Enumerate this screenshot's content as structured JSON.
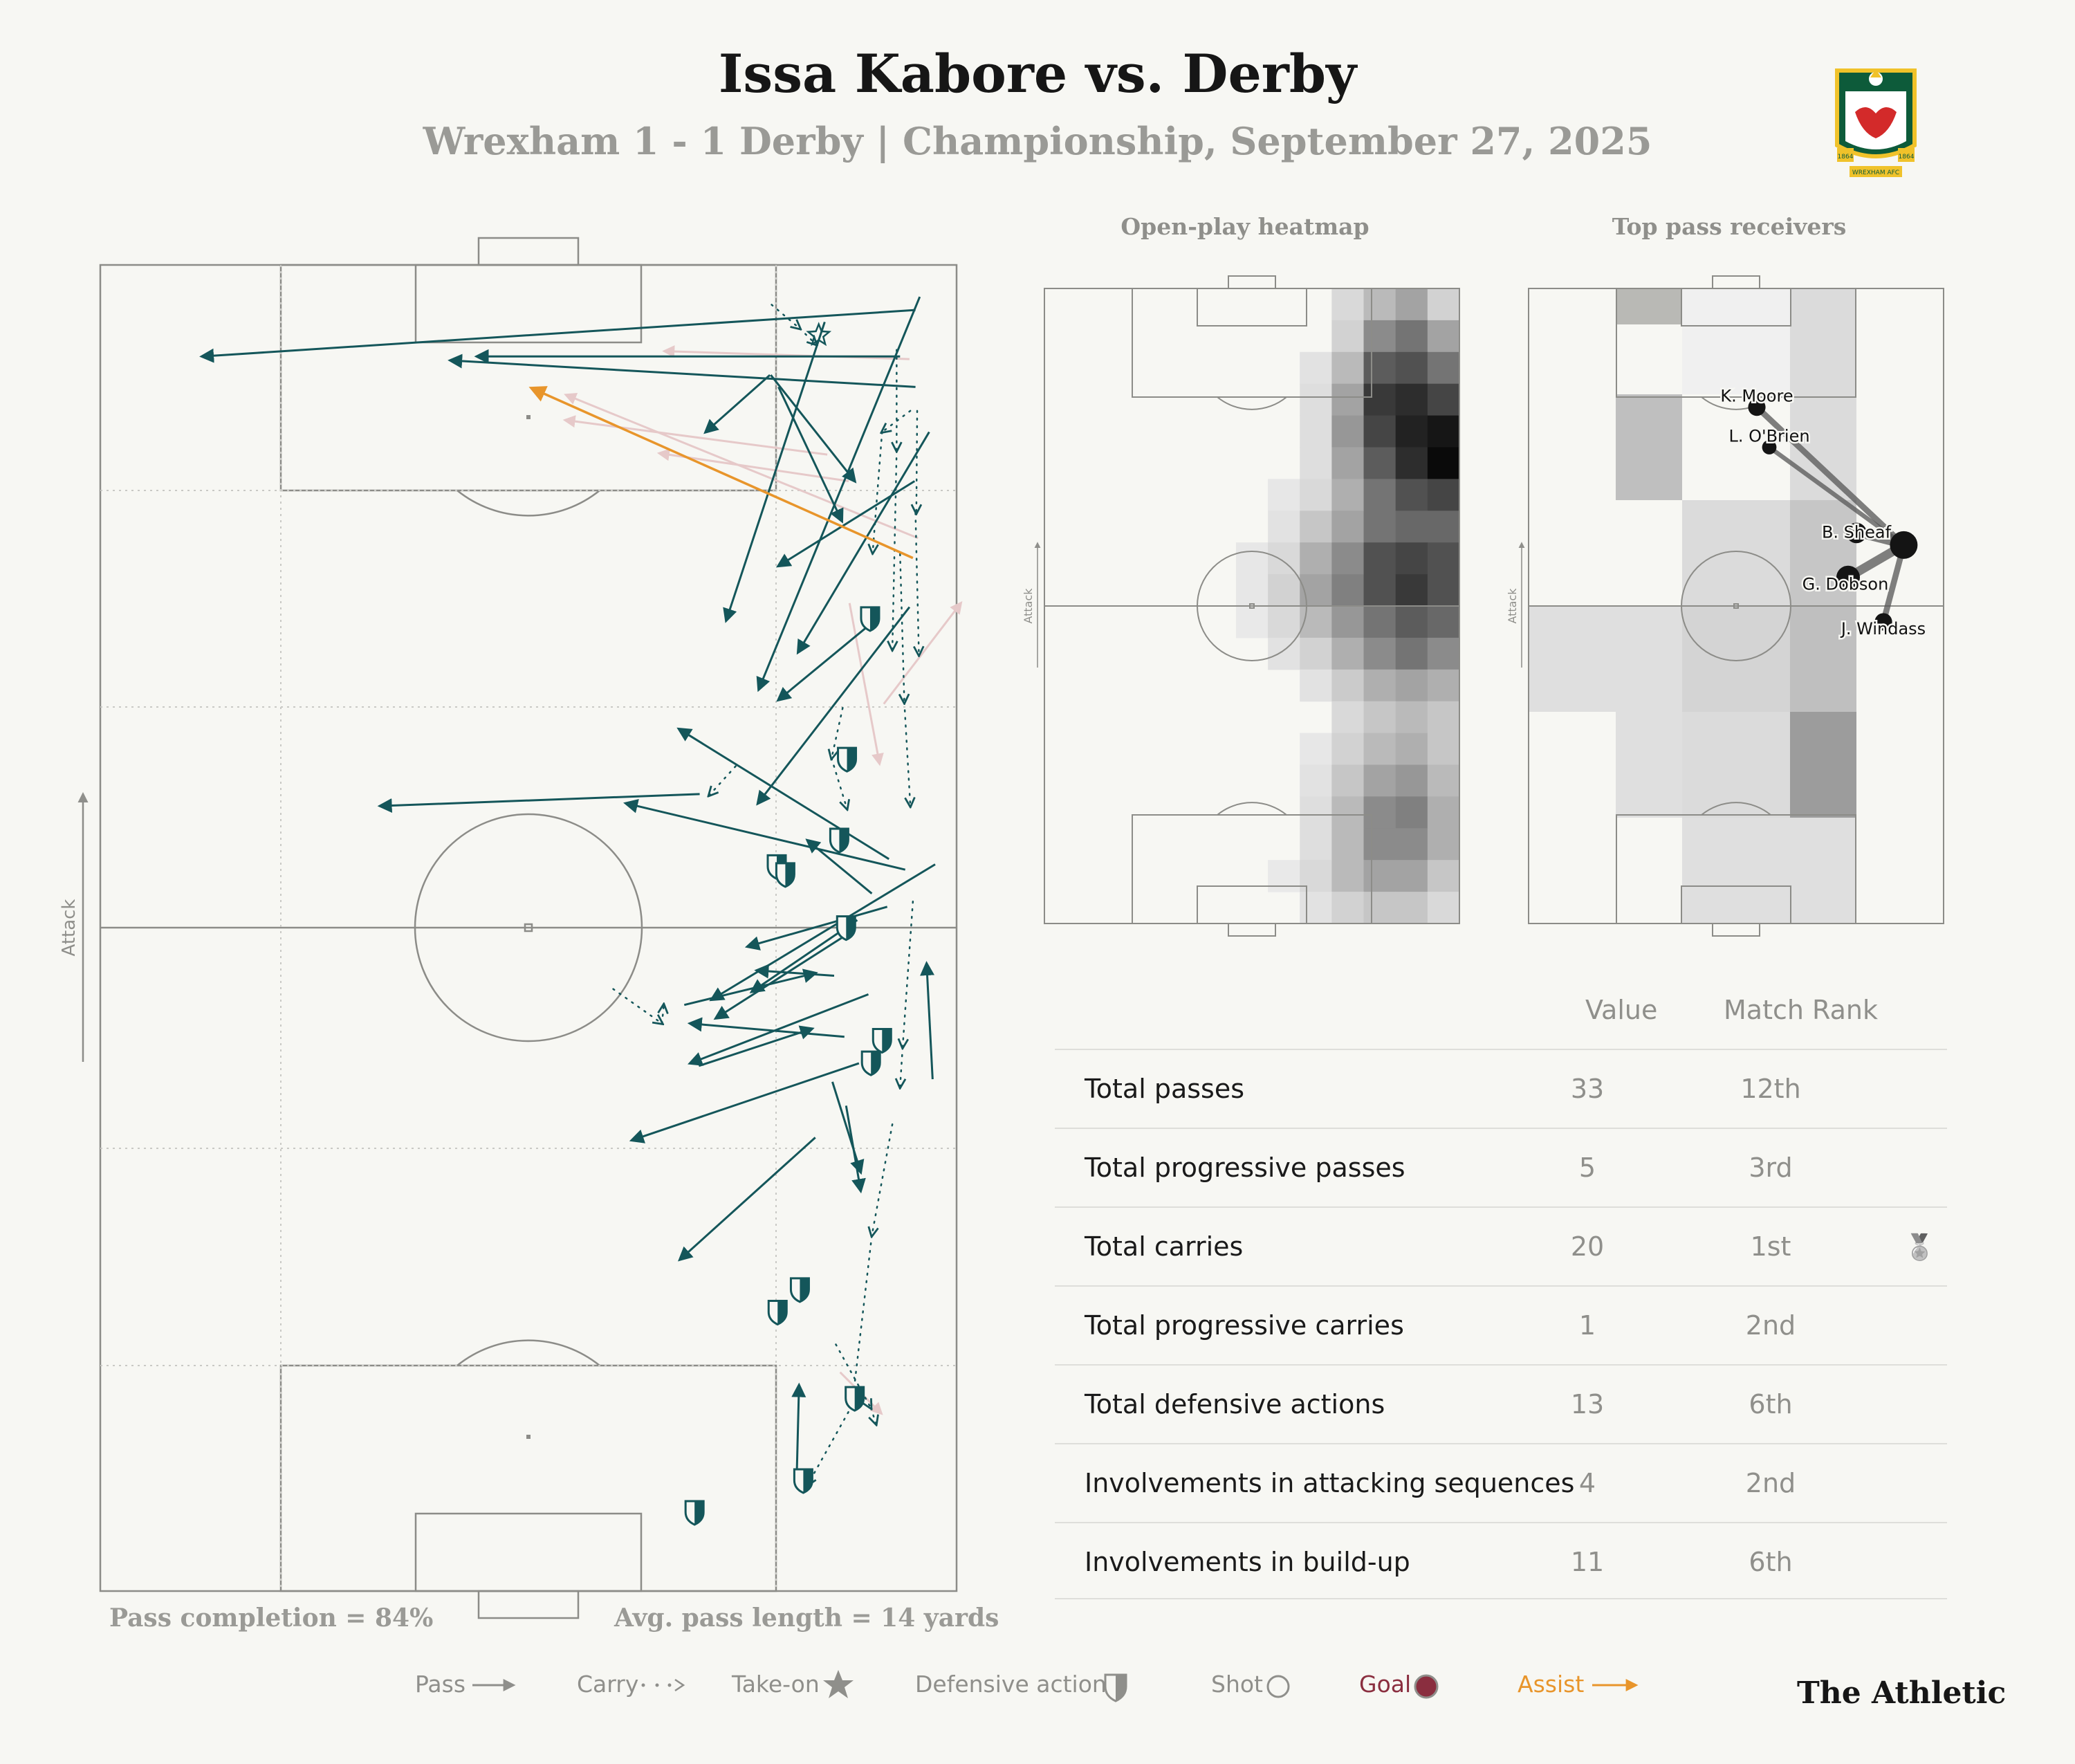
{
  "header": {
    "title": "Issa Kabore vs. Derby",
    "subtitle": "Wrexham 1 - 1 Derby | Championship, September 27, 2025",
    "crest_text_left": "1864",
    "crest_text_right": "1864",
    "crest_banner": "WREXHAM AFC"
  },
  "panels": {
    "heatmap_title": "Open-play heatmap",
    "receivers_title": "Top pass receivers",
    "attack_label": "Attack"
  },
  "pitch_footer": {
    "pass_completion": "Pass completion = 84%",
    "avg_pass_length": "Avg. pass length = 14 yards"
  },
  "stats": {
    "col_value": "Value",
    "col_rank": "Match Rank",
    "rows": [
      {
        "label": "Total passes",
        "value": "33",
        "rank": "12th"
      },
      {
        "label": "Total progressive passes",
        "value": "5",
        "rank": "3rd"
      },
      {
        "label": "Total carries",
        "value": "20",
        "rank": "1st",
        "medal": "medal-icon"
      },
      {
        "label": "Total progressive carries",
        "value": "1",
        "rank": "2nd"
      },
      {
        "label": "Total defensive actions",
        "value": "13",
        "rank": "6th"
      },
      {
        "label": "Involvements in attacking sequences",
        "value": "4",
        "rank": "2nd"
      },
      {
        "label": "Involvements in build-up",
        "value": "11",
        "rank": "6th"
      }
    ]
  },
  "legend": {
    "pass": "Pass",
    "carry": "Carry",
    "takeon": "Take-on",
    "defensive": "Defensive action",
    "shot": "Shot",
    "goal": "Goal",
    "assist": "Assist"
  },
  "brand": "The Athletic",
  "colors": {
    "pass": "#14565a",
    "assist": "#e8952b",
    "goal": "#8a2e3f",
    "faded": "#e6c9c9",
    "pitch_line": "#8c8c88"
  },
  "chart_data": [
    {
      "type": "scatter",
      "title": "",
      "description_axes": "pitch coordinates in percent: x = 0 (left touchline) to 100 (right touchline), y = 0 (opponent goal line, top) to 100 (own goal line, bottom); attack direction up",
      "xlim": [
        0,
        100
      ],
      "ylim": [
        0,
        100
      ],
      "passes": [
        [
          93.4,
          6.9,
          44.0,
          6.9
        ],
        [
          95.2,
          3.4,
          11.9,
          6.9
        ],
        [
          95.2,
          9.2,
          40.9,
          7.2
        ],
        [
          78.3,
          8.3,
          88.1,
          16.3
        ],
        [
          78.2,
          8.3,
          70.7,
          12.6
        ],
        [
          95.1,
          16.3,
          79.2,
          22.7
        ],
        [
          79.2,
          9.2,
          86.6,
          19.3
        ],
        [
          96.8,
          12.6,
          81.5,
          29.2
        ],
        [
          84.6,
          4.3,
          73.1,
          26.8
        ],
        [
          95.7,
          2.4,
          76.9,
          32.0
        ],
        [
          90.1,
          27.0,
          79.2,
          32.8
        ],
        [
          94.5,
          25.8,
          76.8,
          40.6
        ],
        [
          70.0,
          39.9,
          32.7,
          40.8
        ],
        [
          92.1,
          44.8,
          67.6,
          35.0
        ],
        [
          94.0,
          45.6,
          61.4,
          40.6
        ],
        [
          90.1,
          47.4,
          82.6,
          43.4
        ],
        [
          88.4,
          49.4,
          76.1,
          54.8
        ],
        [
          97.5,
          45.2,
          71.4,
          55.4
        ],
        [
          91.9,
          48.4,
          75.6,
          51.4
        ],
        [
          87.9,
          50.2,
          71.9,
          56.8
        ],
        [
          89.7,
          55.0,
          68.9,
          60.2
        ],
        [
          86.9,
          58.2,
          68.9,
          57.2
        ],
        [
          85.7,
          53.6,
          76.7,
          53.2
        ],
        [
          83.5,
          65.8,
          67.7,
          75.0
        ],
        [
          88.6,
          60.2,
          62.1,
          66.0
        ],
        [
          69.9,
          60.4,
          83.1,
          57.6
        ],
        [
          85.5,
          61.6,
          88.8,
          68.4
        ],
        [
          87.1,
          63.4,
          88.8,
          69.8
        ],
        [
          97.2,
          61.4,
          96.5,
          52.7
        ],
        [
          81.3,
          92.2,
          81.6,
          84.5
        ],
        [
          68.2,
          55.8,
          83.5,
          53.4
        ]
      ],
      "assist": [
        94.9,
        22.1,
        50.4,
        9.3
      ],
      "carries": [
        [
          78.4,
          3.0,
          81.7,
          4.8
        ],
        [
          81.7,
          4.8,
          83.6,
          6.0
        ],
        [
          93.0,
          6.4,
          93.0,
          14.0
        ],
        [
          93.0,
          14.0,
          92.5,
          29.0
        ],
        [
          95.4,
          11.0,
          95.3,
          18.7
        ],
        [
          95.2,
          18.7,
          95.6,
          29.4
        ],
        [
          94.6,
          11.0,
          91.3,
          12.6
        ],
        [
          91.3,
          12.6,
          90.2,
          21.7
        ],
        [
          93.4,
          21.8,
          93.9,
          33.0
        ],
        [
          93.9,
          33.0,
          94.6,
          40.8
        ],
        [
          86.7,
          33.4,
          85.4,
          37.2
        ],
        [
          85.4,
          37.2,
          87.2,
          41.0
        ],
        [
          74.2,
          37.8,
          71.1,
          40.0
        ],
        [
          94.9,
          48.0,
          93.7,
          59.0
        ],
        [
          93.7,
          59.0,
          93.4,
          62.0
        ],
        [
          92.5,
          64.8,
          90.1,
          73.2
        ],
        [
          90.1,
          73.2,
          87.8,
          86.0
        ],
        [
          87.8,
          86.0,
          82.6,
          92.0
        ],
        [
          85.9,
          81.4,
          90.0,
          86.2
        ],
        [
          90.0,
          86.2,
          90.6,
          87.4
        ],
        [
          59.9,
          54.6,
          65.6,
          57.2
        ],
        [
          65.6,
          57.2,
          65.8,
          55.8
        ]
      ],
      "takeons": [
        [
          83.9,
          5.3
        ]
      ],
      "defensive_actions": [
        [
          89.9,
          26.6
        ],
        [
          87.2,
          37.2
        ],
        [
          86.3,
          43.3
        ],
        [
          79.0,
          45.3
        ],
        [
          80.0,
          45.9
        ],
        [
          87.1,
          49.9
        ],
        [
          91.3,
          58.4
        ],
        [
          90.0,
          60.1
        ],
        [
          81.7,
          77.2
        ],
        [
          79.1,
          78.9
        ],
        [
          88.1,
          85.4
        ],
        [
          82.1,
          91.6
        ],
        [
          69.4,
          94.0
        ]
      ],
      "faded_actions": [
        [
          94.5,
          7.1,
          65.9,
          6.5
        ],
        [
          95.5,
          20.6,
          54.4,
          9.8
        ],
        [
          84.9,
          14.3,
          54.3,
          11.7
        ],
        [
          87.4,
          16.3,
          65.3,
          14.2
        ],
        [
          87.5,
          25.5,
          91.0,
          37.6
        ],
        [
          91.5,
          33.1,
          100.5,
          25.5
        ],
        [
          86.4,
          83.5,
          91.2,
          86.6
        ]
      ]
    },
    {
      "type": "heatmap",
      "title": "Open-play heatmap",
      "description_axes": "pitch rows 0 (top) .. 19 (bottom), columns 0 (left) .. 12 (right); intensity 0-1",
      "cells": [
        [
          0,
          9,
          0.12
        ],
        [
          0,
          10,
          0.25
        ],
        [
          0,
          11,
          0.35
        ],
        [
          0,
          12,
          0.15
        ],
        [
          1,
          9,
          0.15
        ],
        [
          1,
          10,
          0.45
        ],
        [
          1,
          11,
          0.55
        ],
        [
          1,
          12,
          0.35
        ],
        [
          2,
          8,
          0.08
        ],
        [
          2,
          9,
          0.25
        ],
        [
          2,
          10,
          0.65
        ],
        [
          2,
          11,
          0.7
        ],
        [
          2,
          12,
          0.55
        ],
        [
          3,
          8,
          0.1
        ],
        [
          3,
          9,
          0.35
        ],
        [
          3,
          10,
          0.8
        ],
        [
          3,
          11,
          0.85
        ],
        [
          3,
          12,
          0.75
        ],
        [
          4,
          8,
          0.1
        ],
        [
          4,
          9,
          0.4
        ],
        [
          4,
          10,
          0.75
        ],
        [
          4,
          11,
          0.9
        ],
        [
          4,
          12,
          0.95
        ],
        [
          5,
          8,
          0.1
        ],
        [
          5,
          9,
          0.35
        ],
        [
          5,
          10,
          0.65
        ],
        [
          5,
          11,
          0.85
        ],
        [
          5,
          12,
          1.0
        ],
        [
          6,
          7,
          0.06
        ],
        [
          6,
          8,
          0.12
        ],
        [
          6,
          9,
          0.3
        ],
        [
          6,
          10,
          0.55
        ],
        [
          6,
          11,
          0.7
        ],
        [
          6,
          12,
          0.75
        ],
        [
          7,
          7,
          0.08
        ],
        [
          7,
          8,
          0.2
        ],
        [
          7,
          9,
          0.35
        ],
        [
          7,
          10,
          0.55
        ],
        [
          7,
          11,
          0.6
        ],
        [
          7,
          12,
          0.6
        ],
        [
          8,
          6,
          0.06
        ],
        [
          8,
          7,
          0.12
        ],
        [
          8,
          8,
          0.3
        ],
        [
          8,
          9,
          0.45
        ],
        [
          8,
          10,
          0.7
        ],
        [
          8,
          11,
          0.75
        ],
        [
          8,
          12,
          0.7
        ],
        [
          9,
          6,
          0.06
        ],
        [
          9,
          7,
          0.15
        ],
        [
          9,
          8,
          0.35
        ],
        [
          9,
          9,
          0.5
        ],
        [
          9,
          10,
          0.7
        ],
        [
          9,
          11,
          0.8
        ],
        [
          9,
          12,
          0.7
        ],
        [
          10,
          6,
          0.05
        ],
        [
          10,
          7,
          0.12
        ],
        [
          10,
          8,
          0.25
        ],
        [
          10,
          9,
          0.4
        ],
        [
          10,
          10,
          0.55
        ],
        [
          10,
          11,
          0.65
        ],
        [
          10,
          12,
          0.6
        ],
        [
          11,
          7,
          0.08
        ],
        [
          11,
          8,
          0.15
        ],
        [
          11,
          9,
          0.3
        ],
        [
          11,
          10,
          0.45
        ],
        [
          11,
          11,
          0.55
        ],
        [
          11,
          12,
          0.45
        ],
        [
          12,
          8,
          0.08
        ],
        [
          12,
          9,
          0.18
        ],
        [
          12,
          10,
          0.3
        ],
        [
          12,
          11,
          0.35
        ],
        [
          12,
          12,
          0.3
        ],
        [
          13,
          9,
          0.12
        ],
        [
          13,
          10,
          0.2
        ],
        [
          13,
          11,
          0.25
        ],
        [
          13,
          12,
          0.2
        ],
        [
          14,
          8,
          0.06
        ],
        [
          14,
          9,
          0.15
        ],
        [
          14,
          10,
          0.25
        ],
        [
          14,
          11,
          0.3
        ],
        [
          14,
          12,
          0.2
        ],
        [
          15,
          8,
          0.08
        ],
        [
          15,
          9,
          0.2
        ],
        [
          15,
          10,
          0.35
        ],
        [
          15,
          11,
          0.4
        ],
        [
          15,
          12,
          0.25
        ],
        [
          16,
          8,
          0.1
        ],
        [
          16,
          9,
          0.25
        ],
        [
          16,
          10,
          0.45
        ],
        [
          16,
          11,
          0.5
        ],
        [
          16,
          12,
          0.3
        ],
        [
          17,
          8,
          0.1
        ],
        [
          17,
          9,
          0.25
        ],
        [
          17,
          10,
          0.45
        ],
        [
          17,
          11,
          0.45
        ],
        [
          17,
          12,
          0.3
        ],
        [
          18,
          7,
          0.05
        ],
        [
          18,
          8,
          0.12
        ],
        [
          18,
          9,
          0.25
        ],
        [
          18,
          10,
          0.35
        ],
        [
          18,
          11,
          0.35
        ],
        [
          18,
          12,
          0.2
        ],
        [
          19,
          8,
          0.08
        ],
        [
          19,
          9,
          0.15
        ],
        [
          19,
          10,
          0.2
        ],
        [
          19,
          11,
          0.2
        ],
        [
          19,
          12,
          0.12
        ]
      ]
    },
    {
      "type": "scatter",
      "title": "Top pass receivers",
      "description_axes": "zone shading: rows 0-5 top to bottom, columns 0-4 left to right, intensity 0-1; receiver positions in pitch percent",
      "zones": [
        [
          0,
          1,
          0.55
        ],
        [
          0,
          2,
          0.0
        ],
        [
          0,
          3,
          0.15
        ],
        [
          1,
          1,
          0.35
        ],
        [
          1,
          3,
          0.15
        ],
        [
          2,
          2,
          0.15
        ],
        [
          2,
          3,
          0.3
        ],
        [
          3,
          0,
          0.12
        ],
        [
          3,
          1,
          0.12
        ],
        [
          3,
          2,
          0.2
        ],
        [
          3,
          3,
          0.35
        ],
        [
          4,
          1,
          0.12
        ],
        [
          4,
          2,
          0.15
        ],
        [
          4,
          3,
          0.6
        ],
        [
          5,
          2,
          0.12
        ],
        [
          5,
          3,
          0.12
        ],
        [
          6,
          2,
          0.12
        ],
        [
          7,
          3,
          0.15
        ],
        [
          8,
          3,
          0.15
        ]
      ],
      "player": [
        90.4,
        40.4
      ],
      "receivers": [
        {
          "name": "K. Moore",
          "x": 55.0,
          "y": 18.7,
          "passes": 3
        },
        {
          "name": "L. O'Brien",
          "x": 58.0,
          "y": 25.0,
          "passes": 2
        },
        {
          "name": "B. Sheaf",
          "x": 79.0,
          "y": 38.5,
          "passes": 4
        },
        {
          "name": "G. Dobson",
          "x": 77.0,
          "y": 45.5,
          "passes": 5
        },
        {
          "name": "J. Windass",
          "x": 85.5,
          "y": 52.5,
          "passes": 3
        }
      ]
    }
  ]
}
